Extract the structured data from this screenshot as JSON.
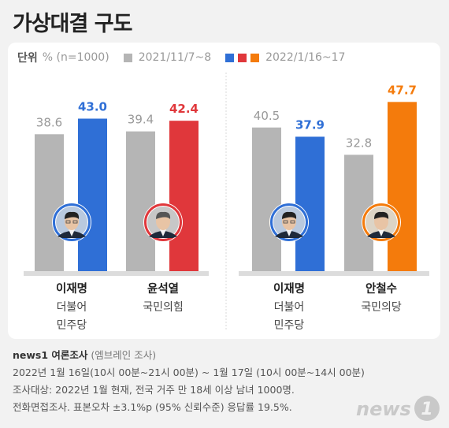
{
  "title": "가상대결 구도",
  "legend": {
    "unit_label": "단위",
    "unit": "% (n=1000)",
    "period1": "2021/11/7~8",
    "period2": "2022/1/16~17"
  },
  "colors": {
    "prev": "#b5b5b5",
    "lee": "#2f6fd6",
    "yoon": "#e0373b",
    "ahn": "#f47b0c",
    "baseline": "#dcdcdc"
  },
  "chart_data": [
    {
      "type": "bar",
      "categories": [
        "이재명",
        "윤석열"
      ],
      "category_sublabels": [
        [
          "더불어",
          "민주당"
        ],
        [
          "국민의힘"
        ]
      ],
      "series": [
        {
          "name": "2021/11/7~8",
          "values": [
            38.6,
            39.4
          ]
        },
        {
          "name": "2022/1/16~17",
          "values": [
            43.0,
            42.4
          ]
        }
      ],
      "current_colors": [
        "#2f6fd6",
        "#e0373b"
      ],
      "avatars": [
        "lee",
        "yoon"
      ]
    },
    {
      "type": "bar",
      "categories": [
        "이재명",
        "안철수"
      ],
      "category_sublabels": [
        [
          "더불어",
          "민주당"
        ],
        [
          "국민의당"
        ]
      ],
      "series": [
        {
          "name": "2021/11/7~8",
          "values": [
            40.5,
            32.8
          ]
        },
        {
          "name": "2022/1/16~17",
          "values": [
            37.9,
            47.7
          ]
        }
      ],
      "current_colors": [
        "#2f6fd6",
        "#f47b0c"
      ],
      "avatars": [
        "lee",
        "ahn"
      ]
    }
  ],
  "footer": {
    "source": "news1 여론조사",
    "source_sub": "(엠브레인 조사)",
    "line1": "2022년 1월 16일(10시 00분~21시 00분) ~ 1월 17일 (10시 00분~14시 00분)",
    "line2": "조사대상: 2022년 1월 현재, 전국 거주 만 18세 이상 남녀 1000명.",
    "line3": "전화면접조사. 표본오차 ±3.1%p (95% 신뢰수준) 응답률 19.5%."
  },
  "logo": {
    "text": "news",
    "num": "1"
  }
}
